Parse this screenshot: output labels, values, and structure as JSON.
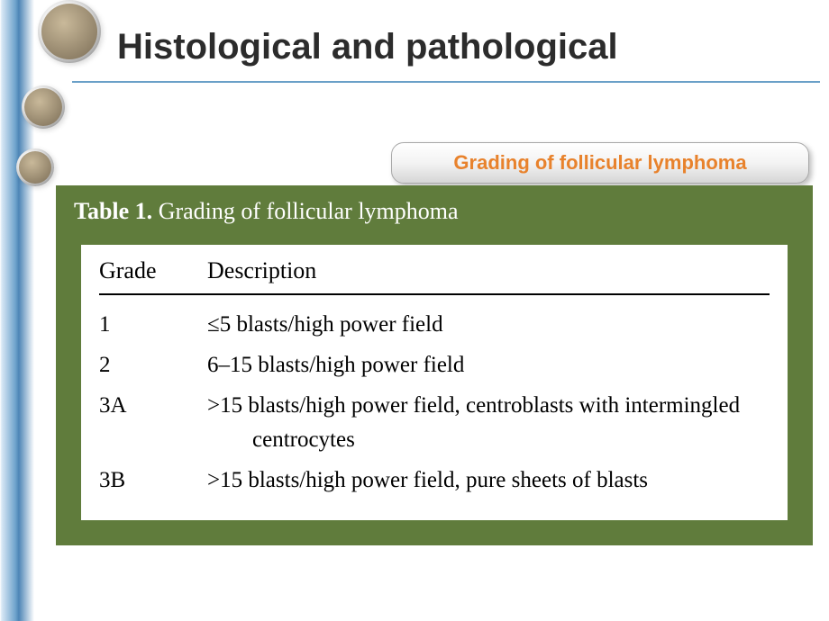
{
  "colors": {
    "stripe_gradient": [
      "#d8e8f5",
      "#6fa3cc",
      "#4d85b6"
    ],
    "title_color": "#2c2c2c",
    "rule_color": "#6aa0c8",
    "pill_text_color": "#e8822c",
    "table_bg": "#607c3c",
    "table_body_bg": "#ffffff",
    "table_border": "#000000"
  },
  "typography": {
    "title_fontsize": 40,
    "pill_fontsize": 22,
    "caption_fontsize": 26,
    "header_fontsize": 26,
    "row_fontsize": 25,
    "title_font": "Arial",
    "table_font": "Georgia"
  },
  "title": "Histological and pathological",
  "pill_label": "Grading of follicular lymphoma",
  "table": {
    "caption_lead": "Table 1.",
    "caption_rest": "  Grading of follicular lymphoma",
    "columns": [
      "Grade",
      "Description"
    ],
    "rows": [
      {
        "grade": "1",
        "desc": "≤5 blasts/high power field"
      },
      {
        "grade": "2",
        "desc": "6–15 blasts/high power field"
      },
      {
        "grade": "3A",
        "desc": ">15 blasts/high power field, centroblasts with intermingled",
        "desc2": "centrocytes"
      },
      {
        "grade": "3B",
        "desc": ">15 blasts/high power field, pure sheets of blasts"
      }
    ]
  }
}
